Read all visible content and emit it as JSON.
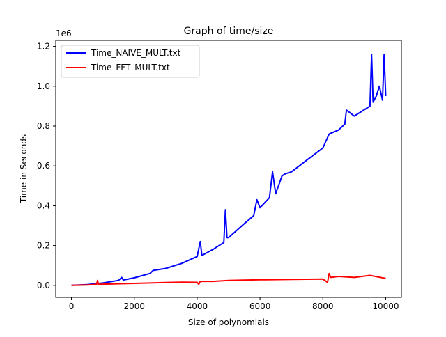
{
  "chart_data": {
    "type": "line",
    "title": "Graph of time/size",
    "xlabel": "Size of polynomials",
    "ylabel": "Time in Seconds",
    "y_offset_label": "1e6",
    "xlim": [
      -500,
      10500
    ],
    "ylim": [
      -0.06,
      1.23
    ],
    "x_ticks": [
      0,
      2000,
      4000,
      6000,
      8000,
      10000
    ],
    "x_tick_labels": [
      "0",
      "2000",
      "4000",
      "6000",
      "8000",
      "10000"
    ],
    "y_ticks": [
      0.0,
      0.2,
      0.4,
      0.6,
      0.8,
      1.0,
      1.2
    ],
    "y_tick_labels": [
      "0.0",
      "0.2",
      "0.4",
      "0.6",
      "0.8",
      "1.0",
      "1.2"
    ],
    "grid": false,
    "legend_position": "upper-left",
    "series": [
      {
        "name": "Time_NAIVE_MULT.txt",
        "color": "#0000ff",
        "x": [
          0,
          500,
          1000,
          1500,
          1600,
          1650,
          2000,
          2500,
          2600,
          3000,
          3500,
          4000,
          4100,
          4150,
          4500,
          4850,
          4900,
          4950,
          5000,
          5500,
          5800,
          5900,
          6000,
          6300,
          6400,
          6500,
          6700,
          6800,
          7000,
          7500,
          8000,
          8200,
          8500,
          8700,
          8750,
          9000,
          9300,
          9500,
          9550,
          9600,
          9700,
          9800,
          9900,
          9950,
          10000
        ],
        "y": [
          0.0,
          0.004,
          0.012,
          0.025,
          0.04,
          0.027,
          0.038,
          0.06,
          0.075,
          0.085,
          0.11,
          0.145,
          0.22,
          0.15,
          0.18,
          0.215,
          0.38,
          0.24,
          0.24,
          0.31,
          0.35,
          0.43,
          0.39,
          0.44,
          0.57,
          0.46,
          0.55,
          0.56,
          0.57,
          0.63,
          0.69,
          0.76,
          0.78,
          0.81,
          0.88,
          0.85,
          0.88,
          0.9,
          1.16,
          0.92,
          0.95,
          1.0,
          0.93,
          1.16,
          0.95
        ]
      },
      {
        "name": "Time_FFT_MULT.txt",
        "color": "#ff0000",
        "x": [
          0,
          500,
          800,
          830,
          860,
          1000,
          2000,
          2500,
          3000,
          3500,
          4000,
          4050,
          4100,
          4500,
          5000,
          6000,
          7000,
          8000,
          8150,
          8200,
          8250,
          8500,
          9000,
          9500,
          10000
        ],
        "y": [
          0.0,
          0.002,
          0.005,
          0.025,
          0.005,
          0.006,
          0.01,
          0.012,
          0.014,
          0.016,
          0.015,
          0.005,
          0.02,
          0.02,
          0.025,
          0.028,
          0.03,
          0.032,
          0.015,
          0.06,
          0.04,
          0.045,
          0.04,
          0.05,
          0.035
        ]
      }
    ]
  }
}
